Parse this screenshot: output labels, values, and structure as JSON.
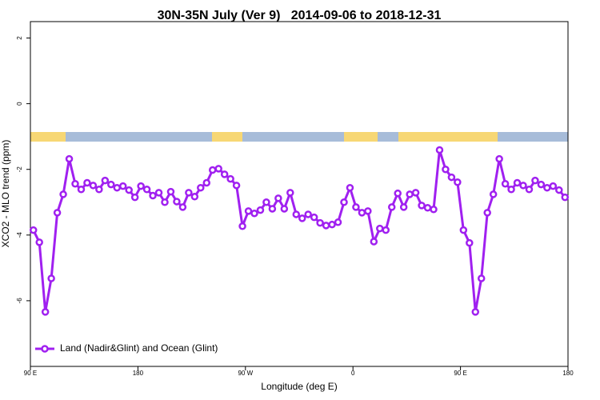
{
  "chart_data": {
    "type": "line",
    "title": "30N-35N July (Ver 9)   2014-09-06 to 2018-12-31",
    "xlabel": "Longitude (deg E)",
    "ylabel": "XCO2 - MLO trend (ppm)",
    "xlim": [
      90,
      540
    ],
    "ylim": [
      -8,
      2.5
    ],
    "xticks": [
      {
        "value": 90,
        "label": "90 E"
      },
      180,
      {
        "value": 270,
        "label": "90 W"
      },
      {
        "value": 360,
        "label": "0"
      },
      {
        "value": 450,
        "label": "90 E"
      },
      {
        "value": 540,
        "label": "180"
      }
    ],
    "yticks": [
      -6,
      -4,
      -2,
      0,
      2
    ],
    "legend": "bottom-left",
    "x": [
      92.5,
      97.5,
      102.5,
      107.5,
      112.5,
      117.5,
      122.5,
      127.5,
      132.5,
      137.5,
      142.5,
      147.5,
      152.5,
      157.5,
      162.5,
      167.5,
      172.5,
      177.5,
      182.5,
      187.5,
      192.5,
      197.5,
      202.5,
      207.5,
      212.5,
      217.5,
      222.5,
      227.5,
      232.5,
      237.5,
      242.5,
      247.5,
      252.5,
      257.5,
      262.5,
      267.5,
      272.5,
      277.5,
      282.5,
      287.5,
      292.5,
      297.5,
      302.5,
      307.5,
      312.5,
      317.5,
      322.5,
      327.5,
      332.5,
      337.5,
      342.5,
      347.5,
      352.5,
      357.5,
      362.5,
      367.5,
      372.5,
      377.5,
      382.5,
      387.5,
      392.5,
      397.5,
      402.5,
      407.5,
      412.5,
      417.5,
      422.5,
      427.5,
      432.5,
      437.5,
      442.5,
      447.5,
      452.5,
      457.5,
      462.5,
      467.5,
      472.5,
      477.5,
      482.5,
      487.5,
      492.5,
      497.5,
      502.5,
      507.5,
      512.5,
      517.5,
      522.5,
      527.5,
      532.5,
      537.5
    ],
    "series": [
      {
        "name": "Land (Nadir&Glint) and Ocean (Glint)",
        "color": "#a020f0",
        "values": [
          -3.85,
          -4.22,
          -6.34,
          -5.32,
          -3.32,
          -2.76,
          -1.68,
          -2.44,
          -2.61,
          -2.41,
          -2.49,
          -2.61,
          -2.34,
          -2.46,
          -2.56,
          -2.51,
          -2.63,
          -2.85,
          -2.51,
          -2.61,
          -2.8,
          -2.71,
          -3.0,
          -2.68,
          -2.98,
          -3.15,
          -2.71,
          -2.83,
          -2.56,
          -2.41,
          -2.02,
          -1.98,
          -2.15,
          -2.29,
          -2.49,
          -3.73,
          -3.27,
          -3.34,
          -3.24,
          -3.0,
          -3.2,
          -2.88,
          -3.2,
          -2.71,
          -3.37,
          -3.49,
          -3.37,
          -3.46,
          -3.63,
          -3.71,
          -3.68,
          -3.61,
          -3.0,
          -2.56,
          -3.15,
          -3.32,
          -3.27,
          -4.2,
          -3.8,
          -3.85,
          -3.15,
          -2.73,
          -3.15,
          -2.76,
          -2.71,
          -3.1,
          -3.17,
          -3.22,
          -1.41,
          -2.0,
          -2.24,
          -2.39,
          -3.85,
          -4.24,
          -6.34,
          -5.32,
          -3.32,
          -2.76,
          -1.68,
          -2.44,
          -2.61,
          -2.41,
          -2.49,
          -2.61,
          -2.34,
          -2.46,
          -2.56,
          -2.51,
          -2.63,
          -2.85
        ]
      }
    ]
  }
}
